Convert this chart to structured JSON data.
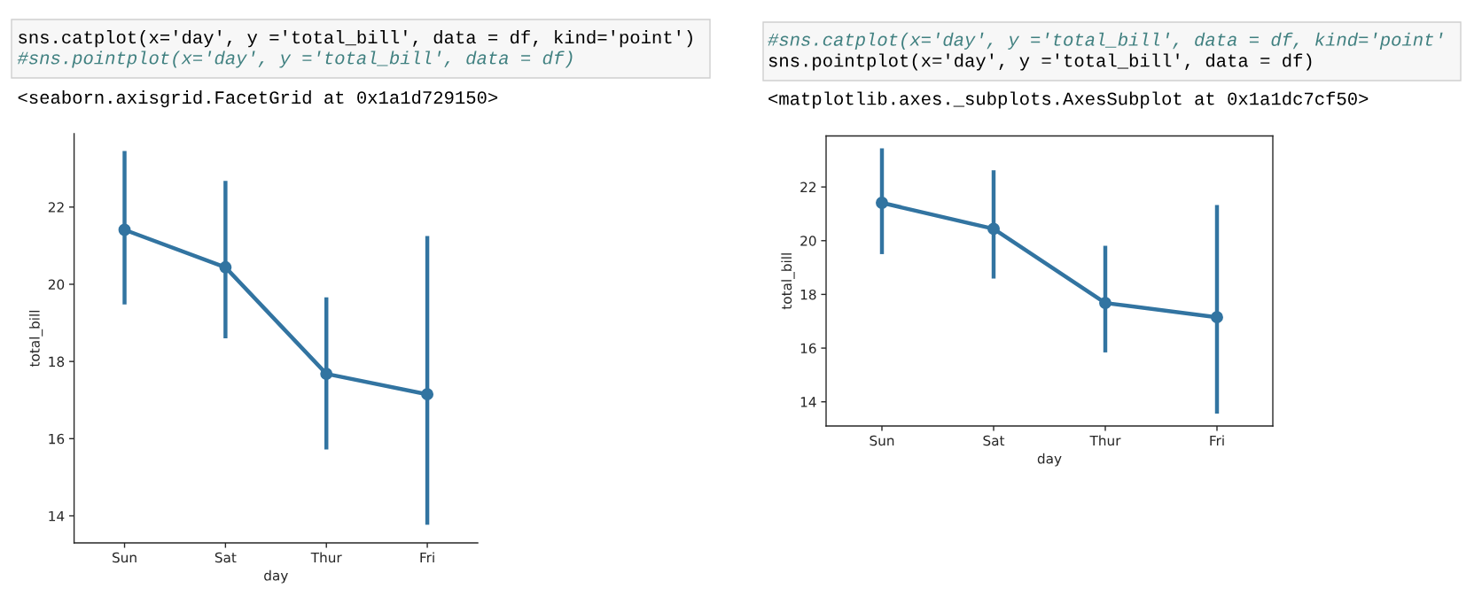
{
  "chart_data": [
    {
      "type": "line",
      "xlabel": "day",
      "ylabel": "total_bill",
      "categories": [
        "Sun",
        "Sat",
        "Thur",
        "Fri"
      ],
      "series": [
        {
          "color": "#3274a1",
          "values": [
            21.41,
            20.44,
            17.68,
            17.15
          ],
          "errors": [
            [
              19.48,
              23.45
            ],
            [
              18.6,
              22.68
            ],
            [
              15.72,
              19.66
            ],
            [
              13.77,
              21.25
            ]
          ]
        }
      ],
      "ylim": [
        13.3,
        23.9
      ],
      "yticks": [
        14,
        16,
        18,
        20,
        22
      ],
      "marker": "circle",
      "line_style": "solid",
      "grid": false,
      "annotations": [
        "sns.catplot(x='day', y ='total_bill', data = df, kind='point')",
        "#sns.pointplot(x='day', y ='total_bill', data = df)",
        "<seaborn.axisgrid.FacetGrid at 0x1a1d729150>"
      ]
    },
    {
      "type": "line",
      "xlabel": "day",
      "ylabel": "total_bill",
      "categories": [
        "Sun",
        "Sat",
        "Thur",
        "Fri"
      ],
      "series": [
        {
          "color": "#3274a1",
          "values": [
            21.41,
            20.44,
            17.68,
            17.15
          ],
          "errors": [
            [
              19.5,
              23.44
            ],
            [
              18.59,
              22.62
            ],
            [
              15.84,
              19.81
            ],
            [
              13.56,
              21.33
            ]
          ]
        }
      ],
      "ylim": [
        13.1,
        23.9
      ],
      "yticks": [
        14,
        16,
        18,
        20,
        22
      ],
      "marker": "circle",
      "line_style": "solid",
      "grid": false,
      "annotations": [
        "#sns.catplot(x='day', y ='total_bill', data = df, kind='point'",
        "sns.pointplot(x='day', y ='total_bill', data = df)",
        "<matplotlib.axes._subplots.AxesSubplot at 0x1a1dc7cf50>"
      ]
    }
  ]
}
